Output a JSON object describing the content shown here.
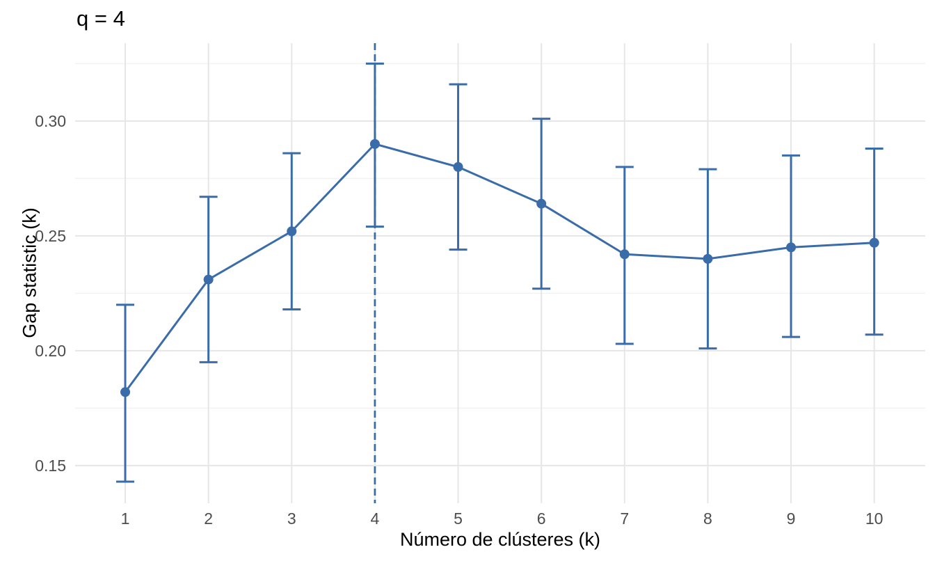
{
  "page": {
    "background": "#ffffff"
  },
  "chart_data": {
    "type": "line",
    "title": "q = 4",
    "xlabel": "Número de clústeres (k)",
    "ylabel": "Gap statistic (k)",
    "x": [
      1,
      2,
      3,
      4,
      5,
      6,
      7,
      8,
      9,
      10
    ],
    "series": [
      {
        "name": "Gap statistic",
        "values": [
          0.182,
          0.231,
          0.252,
          0.29,
          0.28,
          0.264,
          0.242,
          0.24,
          0.245,
          0.247
        ]
      }
    ],
    "error_low": [
      0.143,
      0.195,
      0.218,
      0.254,
      0.244,
      0.227,
      0.203,
      0.201,
      0.206,
      0.207
    ],
    "error_high": [
      0.22,
      0.267,
      0.286,
      0.325,
      0.316,
      0.301,
      0.28,
      0.279,
      0.285,
      0.288
    ],
    "vline_x": 4,
    "vline_style": "dashed",
    "x_ticks": [
      1,
      2,
      3,
      4,
      5,
      6,
      7,
      8,
      9,
      10
    ],
    "y_ticks": [
      0.15,
      0.2,
      0.25,
      0.3
    ],
    "y_minor_gridlines": [
      0.175,
      0.225,
      0.275,
      0.325
    ],
    "xlim": [
      0.398,
      10.613
    ],
    "ylim": [
      0.1336,
      0.3339
    ],
    "grid": "major horizontal+vertical, minor horizontal only",
    "legend_position": "none",
    "colors": {
      "line": "#3A6CA9",
      "point": "#3A6CA9",
      "grid_major": "#E6E6E6",
      "grid_minor": "#F2F2F2",
      "tick_label": "#4D4D4D",
      "text": "#000000"
    }
  }
}
